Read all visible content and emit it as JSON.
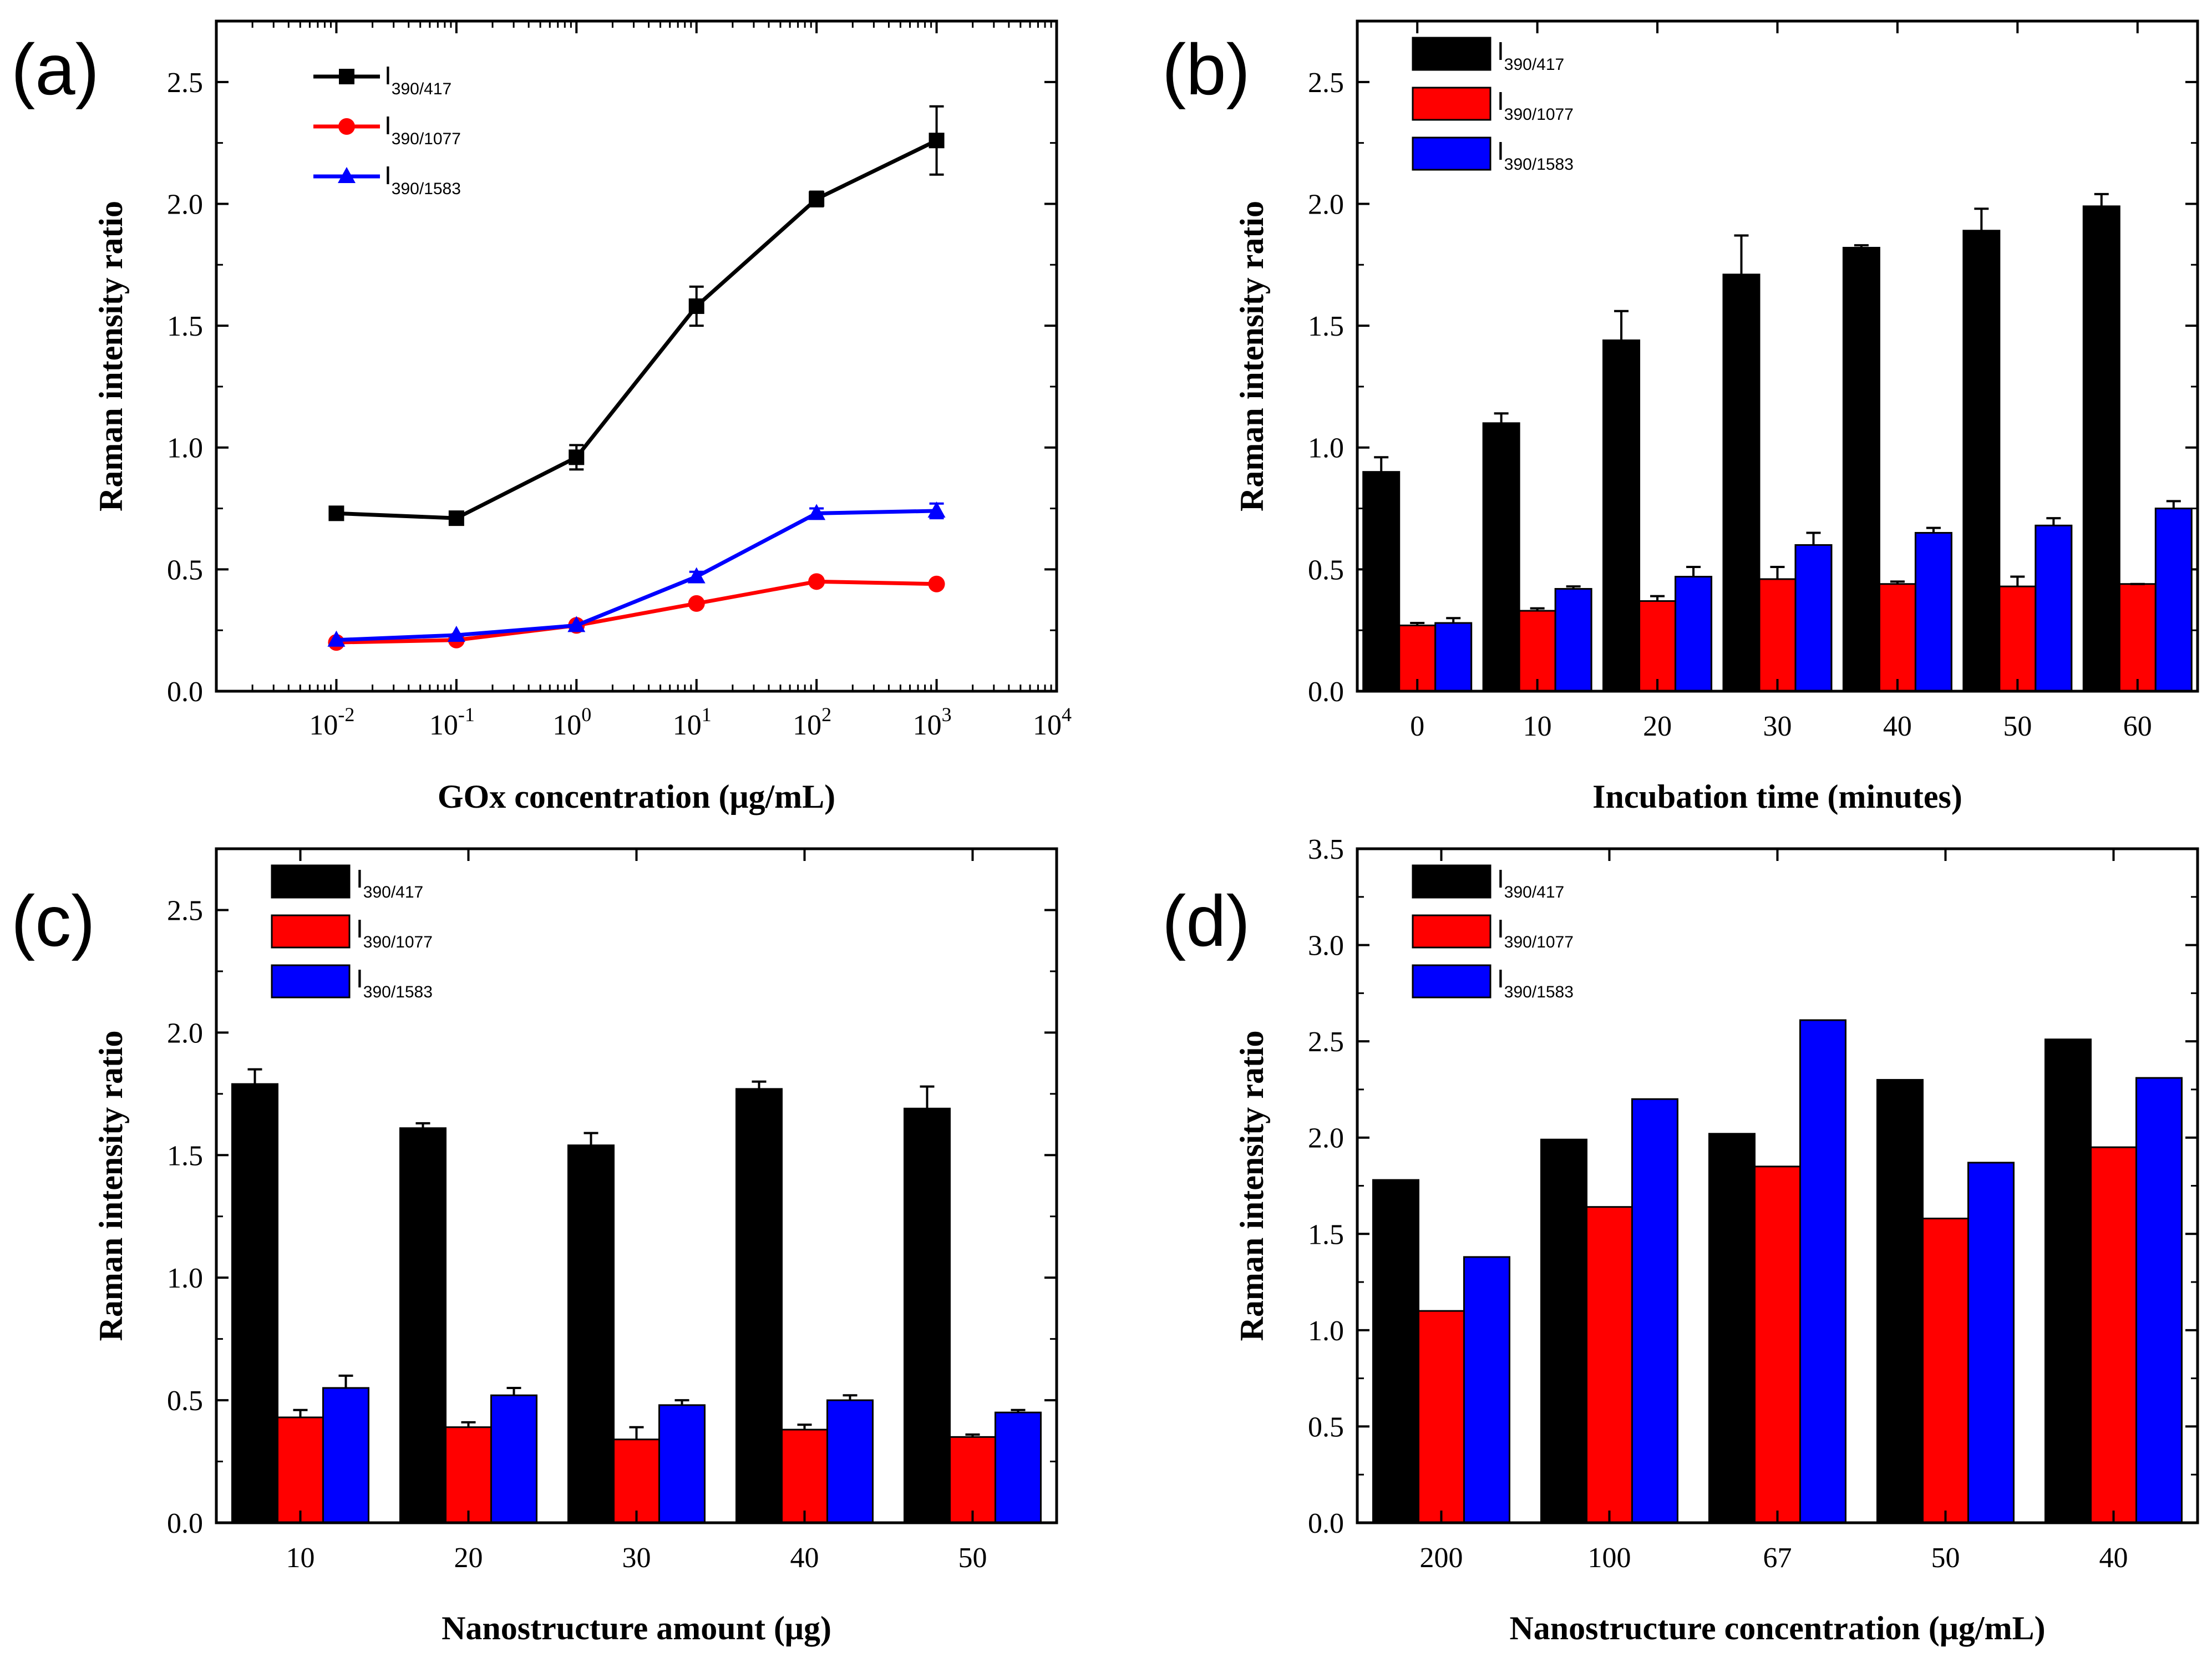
{
  "chart_data": [
    {
      "panel": "(a)",
      "type": "line",
      "xscale": "log",
      "x": [
        0.01,
        0.1,
        1,
        10,
        100,
        1000
      ],
      "xlim": [
        0.001,
        10000
      ],
      "xticks": [
        {
          "base": "10",
          "exp": "-2"
        },
        {
          "base": "10",
          "exp": "-1"
        },
        {
          "base": "10",
          "exp": "0"
        },
        {
          "base": "10",
          "exp": "1"
        },
        {
          "base": "10",
          "exp": "2"
        },
        {
          "base": "10",
          "exp": "3"
        },
        {
          "base": "10",
          "exp": "4"
        }
      ],
      "ylim": [
        0,
        2.75
      ],
      "yticks": [
        "0.0",
        "0.5",
        "1.0",
        "1.5",
        "2.0",
        "2.5"
      ],
      "xlabel": "GOx concentration (μg/mL)",
      "ylabel": "Raman intensity ratio",
      "legend_position": "top-left",
      "series": [
        {
          "label_main": "I",
          "label_sub": "390/417",
          "color": "#000000",
          "marker": "square",
          "values": [
            0.73,
            0.71,
            0.96,
            1.58,
            2.02,
            2.26
          ],
          "errors": [
            0.02,
            0.02,
            0.05,
            0.08,
            0.03,
            0.14
          ]
        },
        {
          "label_main": "I",
          "label_sub": "390/1077",
          "color": "#ff0000",
          "marker": "circle",
          "values": [
            0.2,
            0.21,
            0.27,
            0.36,
            0.45,
            0.44
          ],
          "errors": [
            0.01,
            0.01,
            0.01,
            0.01,
            0.01,
            0.01
          ]
        },
        {
          "label_main": "I",
          "label_sub": "390/1583",
          "color": "#0000ff",
          "marker": "triangle",
          "values": [
            0.21,
            0.23,
            0.27,
            0.47,
            0.73,
            0.74
          ],
          "errors": [
            0.01,
            0.01,
            0.01,
            0.02,
            0.02,
            0.03
          ]
        }
      ]
    },
    {
      "panel": "(b)",
      "type": "bar",
      "categories": [
        "0",
        "10",
        "20",
        "30",
        "40",
        "50",
        "60"
      ],
      "ylim": [
        0,
        2.75
      ],
      "yticks": [
        "0.0",
        "0.5",
        "1.0",
        "1.5",
        "2.0",
        "2.5"
      ],
      "xlabel": "Incubation time (minutes)",
      "ylabel": "Raman intensity ratio",
      "legend_position": "top-left",
      "series": [
        {
          "label_main": "I",
          "label_sub": "390/417",
          "color": "#000000",
          "values": [
            0.9,
            1.1,
            1.44,
            1.71,
            1.82,
            1.89,
            1.99
          ],
          "errors": [
            0.06,
            0.04,
            0.12,
            0.16,
            0.01,
            0.09,
            0.05
          ]
        },
        {
          "label_main": "I",
          "label_sub": "390/1077",
          "color": "#ff0000",
          "values": [
            0.27,
            0.33,
            0.37,
            0.46,
            0.44,
            0.43,
            0.44
          ],
          "errors": [
            0.01,
            0.01,
            0.02,
            0.05,
            0.01,
            0.04,
            0.0
          ]
        },
        {
          "label_main": "I",
          "label_sub": "390/1583",
          "color": "#0000ff",
          "values": [
            0.28,
            0.42,
            0.47,
            0.6,
            0.65,
            0.68,
            0.75
          ],
          "errors": [
            0.02,
            0.01,
            0.04,
            0.05,
            0.02,
            0.03,
            0.03
          ]
        }
      ]
    },
    {
      "panel": "(c)",
      "type": "bar",
      "categories": [
        "10",
        "20",
        "30",
        "40",
        "50"
      ],
      "ylim": [
        0,
        2.75
      ],
      "yticks": [
        "0.0",
        "0.5",
        "1.0",
        "1.5",
        "2.0",
        "2.5"
      ],
      "xlabel": "Nanostructure amount (μg)",
      "ylabel": "Raman intensity ratio",
      "legend_position": "top-left",
      "series": [
        {
          "label_main": "I",
          "label_sub": "390/417",
          "color": "#000000",
          "values": [
            1.79,
            1.61,
            1.54,
            1.77,
            1.69
          ],
          "errors": [
            0.06,
            0.02,
            0.05,
            0.03,
            0.09
          ]
        },
        {
          "label_main": "I",
          "label_sub": "390/1077",
          "color": "#ff0000",
          "values": [
            0.43,
            0.39,
            0.34,
            0.38,
            0.35
          ],
          "errors": [
            0.03,
            0.02,
            0.05,
            0.02,
            0.01
          ]
        },
        {
          "label_main": "I",
          "label_sub": "390/1583",
          "color": "#0000ff",
          "values": [
            0.55,
            0.52,
            0.48,
            0.5,
            0.45
          ],
          "errors": [
            0.05,
            0.03,
            0.02,
            0.02,
            0.01
          ]
        }
      ]
    },
    {
      "panel": "(d)",
      "type": "bar",
      "categories": [
        "200",
        "100",
        "67",
        "50",
        "40"
      ],
      "ylim": [
        0,
        3.5
      ],
      "yticks": [
        "0.0",
        "0.5",
        "1.0",
        "1.5",
        "2.0",
        "2.5",
        "3.0",
        "3.5"
      ],
      "xlabel": "Nanostructure concentration (μg/mL)",
      "ylabel": "Raman intensity ratio",
      "legend_position": "top-left",
      "series": [
        {
          "label_main": "I",
          "label_sub": "390/417",
          "color": "#000000",
          "values": [
            1.78,
            1.99,
            2.02,
            2.3,
            2.51
          ]
        },
        {
          "label_main": "I",
          "label_sub": "390/1077",
          "color": "#ff0000",
          "values": [
            1.1,
            1.64,
            1.85,
            1.58,
            1.95
          ]
        },
        {
          "label_main": "I",
          "label_sub": "390/1583",
          "color": "#0000ff",
          "values": [
            1.38,
            2.2,
            2.61,
            1.87,
            2.31
          ]
        }
      ]
    }
  ]
}
